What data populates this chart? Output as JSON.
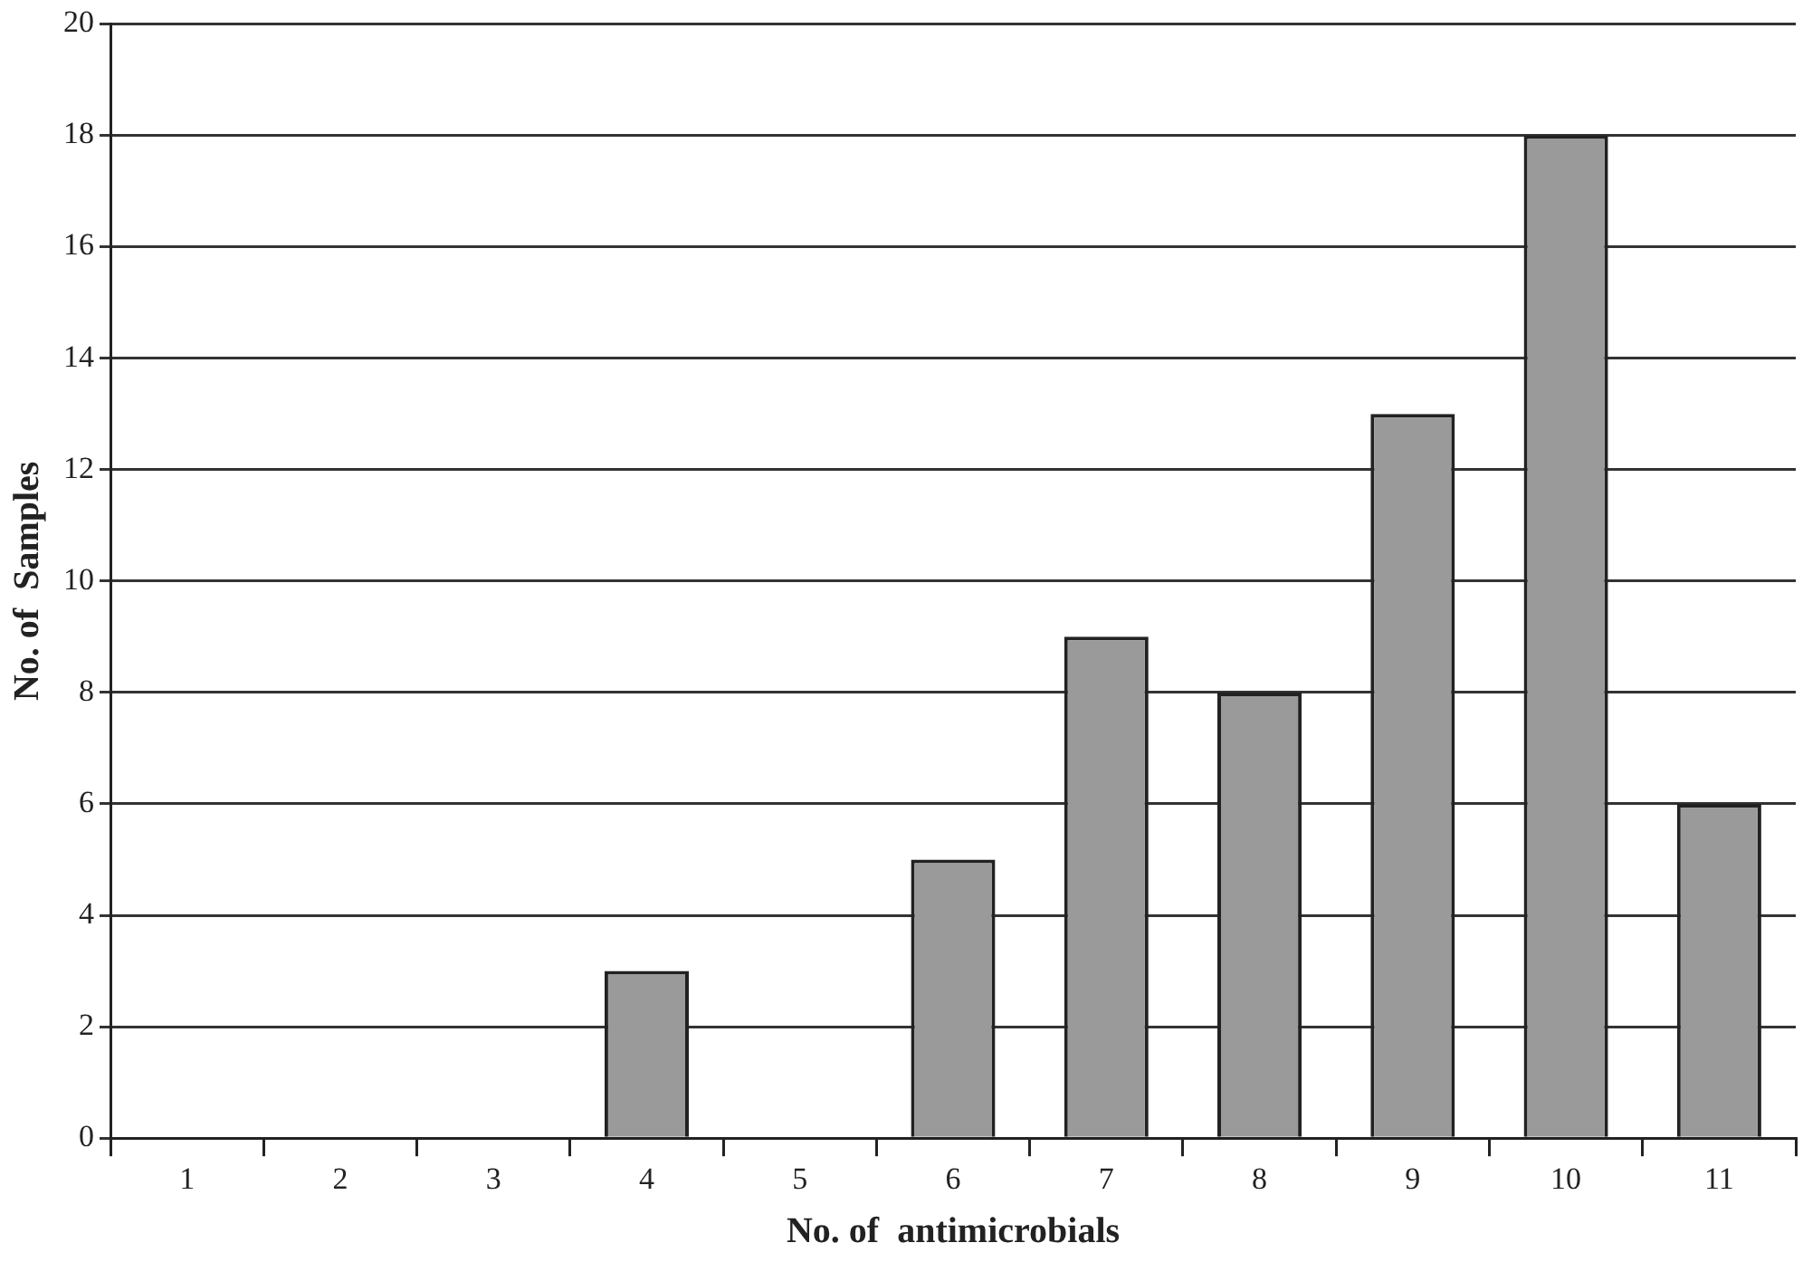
{
  "chart_data": {
    "type": "bar",
    "xlabel": "No. of  antimicrobials",
    "ylabel": "No. of  Samples",
    "categories": [
      "1",
      "2",
      "3",
      "4",
      "5",
      "6",
      "7",
      "8",
      "9",
      "10",
      "11"
    ],
    "values": [
      0,
      0,
      0,
      3,
      0,
      5,
      9,
      8,
      13,
      18,
      6
    ],
    "color": "#9a9a9a",
    "ylim": [
      0,
      20
    ],
    "yticks": [
      0,
      2,
      4,
      6,
      8,
      10,
      12,
      14,
      16,
      18,
      20
    ],
    "grid": "y"
  }
}
